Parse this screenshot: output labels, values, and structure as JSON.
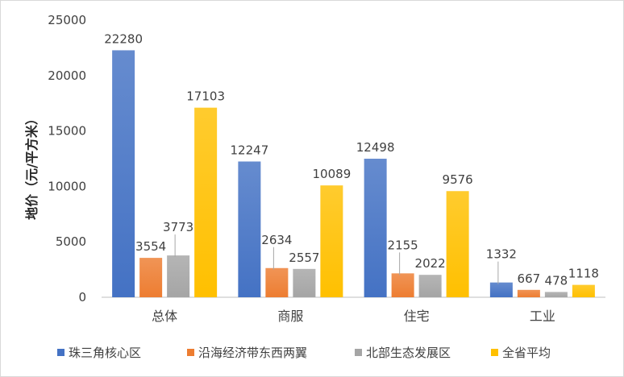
{
  "chart_data": {
    "type": "bar",
    "title": "",
    "xlabel": "",
    "ylabel": "地价（元/平方米）",
    "ylim": [
      0,
      25000
    ],
    "yticks": [
      0,
      5000,
      10000,
      15000,
      20000,
      25000
    ],
    "grid": false,
    "legend_position": "bottom",
    "categories": [
      "总体",
      "商服",
      "住宅",
      "工业"
    ],
    "series": [
      {
        "name": "珠三角核心区",
        "color": "#4472c4",
        "values": [
          22280,
          12247,
          12498,
          1332
        ]
      },
      {
        "name": "沿海经济带东西两翼",
        "color": "#ed7d31",
        "values": [
          3554,
          2634,
          2155,
          667
        ]
      },
      {
        "name": "北部生态发展区",
        "color": "#a5a5a5",
        "values": [
          3773,
          2557,
          2022,
          478
        ]
      },
      {
        "name": "全省平均",
        "color": "#ffc000",
        "values": [
          17103,
          10089,
          9576,
          1118
        ]
      }
    ]
  }
}
